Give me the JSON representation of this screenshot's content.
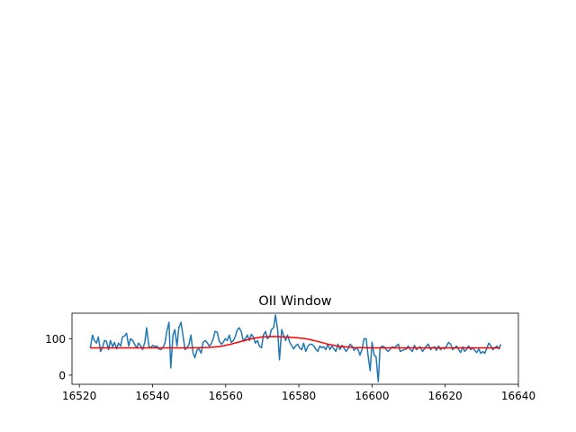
{
  "chart_data": {
    "type": "line",
    "title": "OII Window",
    "xlabel": "",
    "ylabel": "",
    "xlim": [
      16518,
      16640
    ],
    "ylim": [
      -25,
      170
    ],
    "xticks": [
      16520,
      16540,
      16560,
      16580,
      16600,
      16620,
      16640
    ],
    "yticks": [
      0,
      100
    ],
    "grid": false,
    "series": [
      {
        "color": "#1f77b4",
        "x": [
          16523.0,
          16523.6,
          16524.1,
          16524.7,
          16525.2,
          16525.8,
          16526.3,
          16526.9,
          16527.4,
          16528.0,
          16528.5,
          16529.1,
          16529.6,
          16530.2,
          16530.7,
          16531.3,
          16531.8,
          16532.4,
          16532.9,
          16533.5,
          16534.0,
          16534.6,
          16535.1,
          16535.7,
          16536.2,
          16536.8,
          16537.3,
          16537.9,
          16538.4,
          16539.0,
          16539.5,
          16540.1,
          16540.6,
          16541.2,
          16541.7,
          16542.3,
          16542.8,
          16543.4,
          16543.9,
          16544.5,
          16545.0,
          16545.6,
          16546.1,
          16546.7,
          16547.2,
          16547.8,
          16548.3,
          16548.9,
          16549.4,
          16550.0,
          16550.5,
          16551.1,
          16551.6,
          16552.2,
          16552.7,
          16553.3,
          16553.8,
          16554.4,
          16554.9,
          16555.5,
          16556.0,
          16556.6,
          16557.1,
          16557.7,
          16558.2,
          16558.8,
          16559.3,
          16559.9,
          16560.4,
          16561.0,
          16561.5,
          16562.1,
          16562.6,
          16563.2,
          16563.7,
          16564.3,
          16564.8,
          16565.4,
          16565.9,
          16566.5,
          16567.0,
          16567.6,
          16568.1,
          16568.7,
          16569.2,
          16569.8,
          16570.3,
          16570.9,
          16571.4,
          16572.0,
          16572.5,
          16573.1,
          16573.6,
          16574.2,
          16574.7,
          16575.3,
          16575.8,
          16576.4,
          16576.9,
          16577.5,
          16578.0,
          16578.6,
          16579.1,
          16579.7,
          16580.2,
          16580.8,
          16581.3,
          16581.9,
          16582.4,
          16583.0,
          16583.5,
          16584.1,
          16584.6,
          16585.2,
          16585.7,
          16586.3,
          16586.8,
          16587.4,
          16587.9,
          16588.5,
          16589.0,
          16589.6,
          16590.1,
          16590.7,
          16591.2,
          16591.8,
          16592.3,
          16592.9,
          16593.4,
          16594.0,
          16594.5,
          16595.1,
          16595.6,
          16596.2,
          16596.7,
          16597.3,
          16597.8,
          16598.4,
          16598.9,
          16599.5,
          16600.0,
          16600.6,
          16601.1,
          16601.7,
          16602.2,
          16602.8,
          16603.3,
          16603.9,
          16604.4,
          16605.0,
          16605.5,
          16606.1,
          16606.6,
          16607.2,
          16607.7,
          16608.3,
          16608.8,
          16609.4,
          16609.9,
          16610.5,
          16611.0,
          16611.6,
          16612.1,
          16612.7,
          16613.2,
          16613.8,
          16614.3,
          16614.9,
          16615.4,
          16616.0,
          16616.5,
          16617.1,
          16617.6,
          16618.2,
          16618.7,
          16619.3,
          16619.8,
          16620.4,
          16620.9,
          16621.5,
          16622.0,
          16622.6,
          16623.1,
          16623.7,
          16624.2,
          16624.8,
          16625.3,
          16625.9,
          16626.4,
          16627.0,
          16627.5,
          16628.1,
          16628.6,
          16629.2,
          16629.7,
          16630.3,
          16630.8,
          16631.4,
          16631.9,
          16632.5,
          16633.0,
          16633.6,
          16634.1,
          16634.7,
          16635.2
        ],
        "values": [
          75,
          110,
          95,
          88,
          105,
          65,
          75,
          95,
          93,
          70,
          95,
          78,
          90,
          72,
          88,
          80,
          105,
          108,
          115,
          80,
          100,
          95,
          85,
          75,
          88,
          80,
          70,
          90,
          130,
          80,
          75,
          82,
          78,
          80,
          72,
          70,
          75,
          88,
          120,
          145,
          20,
          110,
          125,
          80,
          130,
          145,
          110,
          70,
          75,
          85,
          110,
          60,
          48,
          70,
          72,
          60,
          90,
          95,
          90,
          80,
          85,
          100,
          120,
          118,
          95,
          85,
          90,
          100,
          95,
          110,
          90,
          95,
          105,
          125,
          130,
          118,
          95,
          100,
          110,
          95,
          112,
          105,
          88,
          95,
          80,
          75,
          110,
          120,
          100,
          105,
          125,
          130,
          165,
          125,
          42,
          125,
          110,
          95,
          110,
          90,
          82,
          72,
          80,
          85,
          75,
          70,
          88,
          65,
          78,
          85,
          85,
          80,
          72,
          65,
          80,
          75,
          78,
          70,
          85,
          70,
          80,
          72,
          65,
          85,
          70,
          82,
          75,
          65,
          72,
          85,
          80,
          68,
          75,
          70,
          55,
          72,
          100,
          100,
          55,
          12,
          90,
          55,
          50,
          -18,
          75,
          80,
          78,
          70,
          65,
          72,
          78,
          75,
          80,
          85,
          65,
          68,
          70,
          72,
          80,
          70,
          65,
          82,
          70,
          75,
          78,
          65,
          72,
          80,
          85,
          70,
          75,
          78,
          68,
          80,
          70,
          75,
          72,
          80,
          90,
          85,
          70,
          75,
          80,
          70,
          62,
          78,
          65,
          72,
          80,
          70,
          75,
          68,
          62,
          72,
          60,
          65,
          60,
          75,
          88,
          80,
          70,
          75,
          80,
          72,
          85
        ]
      },
      {
        "color": "#ff0000",
        "x": [
          16523,
          16530,
          16540,
          16550,
          16555,
          16558,
          16561,
          16564,
          16567,
          16570,
          16573,
          16576,
          16579,
          16582,
          16585,
          16588,
          16591,
          16595,
          16600,
          16610,
          16620,
          16630,
          16635
        ],
        "values": [
          75,
          75,
          75,
          75,
          76,
          78,
          84,
          92,
          100,
          105,
          106,
          105,
          103,
          100,
          93,
          85,
          79,
          76,
          75,
          75,
          75,
          75,
          75
        ]
      }
    ]
  }
}
